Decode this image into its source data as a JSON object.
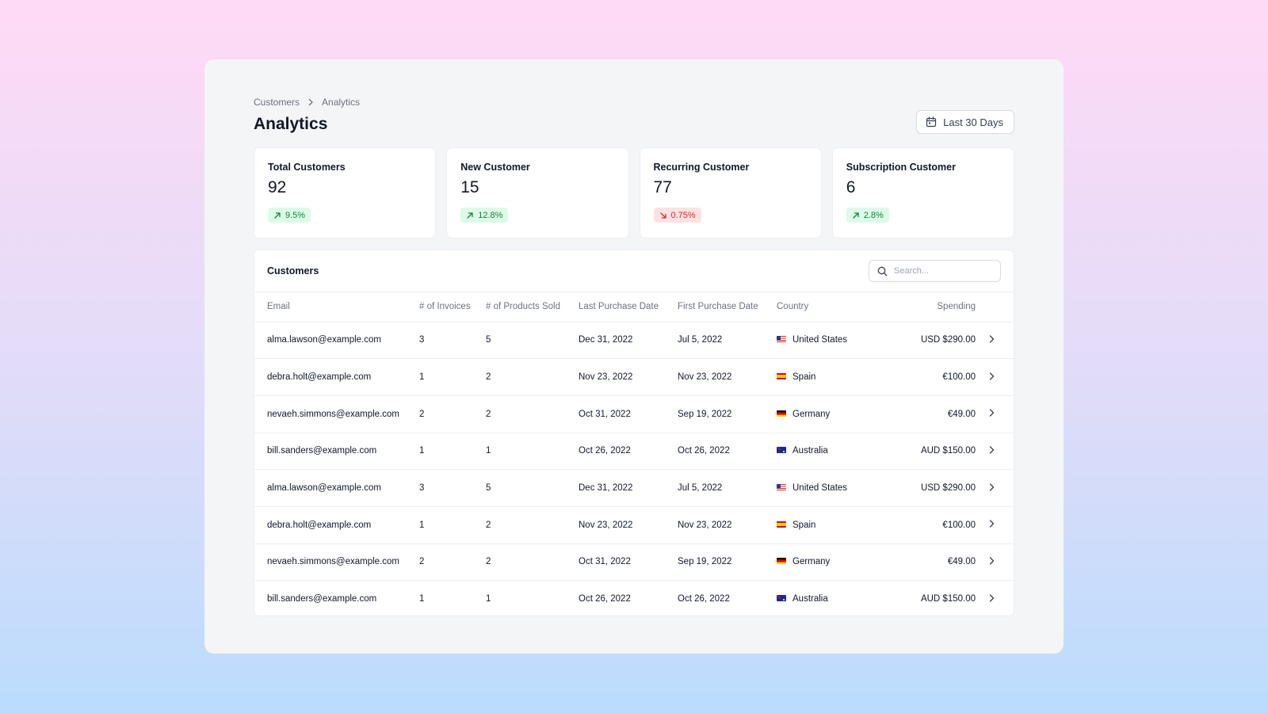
{
  "breadcrumb": {
    "items": [
      "Customers",
      "Analytics"
    ]
  },
  "page": {
    "title": "Analytics"
  },
  "date_range": {
    "label": "Last 30 Days"
  },
  "stats": [
    {
      "label": "Total Customers",
      "value": "92",
      "change": "9.5%",
      "trend": "up"
    },
    {
      "label": "New Customer",
      "value": "15",
      "change": "12.8%",
      "trend": "up"
    },
    {
      "label": "Recurring Customer",
      "value": "77",
      "change": "0.75%",
      "trend": "down"
    },
    {
      "label": "Subscription Customer",
      "value": "6",
      "change": "2.8%",
      "trend": "up"
    }
  ],
  "customers_table": {
    "title": "Customers",
    "search_placeholder": "Search...",
    "columns": [
      "Email",
      "# of Invoices",
      "# of Products Sold",
      "Last Purchase Date",
      "First Purchase Date",
      "Country",
      "Spending"
    ],
    "rows": [
      {
        "email": "alma.lawson@example.com",
        "invoices": "3",
        "products": "5",
        "last_purchase": "Dec 31, 2022",
        "first_purchase": "Jul 5, 2022",
        "country": "United States",
        "flag": "us",
        "spending": "USD $290.00"
      },
      {
        "email": "debra.holt@example.com",
        "invoices": "1",
        "products": "2",
        "last_purchase": "Nov 23, 2022",
        "first_purchase": "Nov 23, 2022",
        "country": "Spain",
        "flag": "es",
        "spending": "€100.00"
      },
      {
        "email": "nevaeh.simmons@example.com",
        "invoices": "2",
        "products": "2",
        "last_purchase": "Oct 31, 2022",
        "first_purchase": "Sep 19, 2022",
        "country": "Germany",
        "flag": "de",
        "spending": "€49.00"
      },
      {
        "email": "bill.sanders@example.com",
        "invoices": "1",
        "products": "1",
        "last_purchase": "Oct 26, 2022",
        "first_purchase": "Oct 26, 2022",
        "country": "Australia",
        "flag": "au",
        "spending": "AUD $150.00"
      },
      {
        "email": "alma.lawson@example.com",
        "invoices": "3",
        "products": "5",
        "last_purchase": "Dec 31, 2022",
        "first_purchase": "Jul 5, 2022",
        "country": "United States",
        "flag": "us",
        "spending": "USD $290.00"
      },
      {
        "email": "debra.holt@example.com",
        "invoices": "1",
        "products": "2",
        "last_purchase": "Nov 23, 2022",
        "first_purchase": "Nov 23, 2022",
        "country": "Spain",
        "flag": "es",
        "spending": "€100.00"
      },
      {
        "email": "nevaeh.simmons@example.com",
        "invoices": "2",
        "products": "2",
        "last_purchase": "Oct 31, 2022",
        "first_purchase": "Sep 19, 2022",
        "country": "Germany",
        "flag": "de",
        "spending": "€49.00"
      },
      {
        "email": "bill.sanders@example.com",
        "invoices": "1",
        "products": "1",
        "last_purchase": "Oct 26, 2022",
        "first_purchase": "Oct 26, 2022",
        "country": "Australia",
        "flag": "au",
        "spending": "AUD $150.00"
      }
    ]
  },
  "colors": {
    "up": "#15803d",
    "up_bg": "#dcfce7",
    "down": "#dc2626",
    "down_bg": "#fee2e2"
  },
  "icons": {
    "breadcrumb_separator": "chevron-right-icon",
    "date_range": "calendar-icon",
    "search": "search-icon",
    "trend_up": "arrow-up-right-icon",
    "trend_down": "arrow-down-right-icon",
    "row_action": "chevron-right-icon"
  }
}
